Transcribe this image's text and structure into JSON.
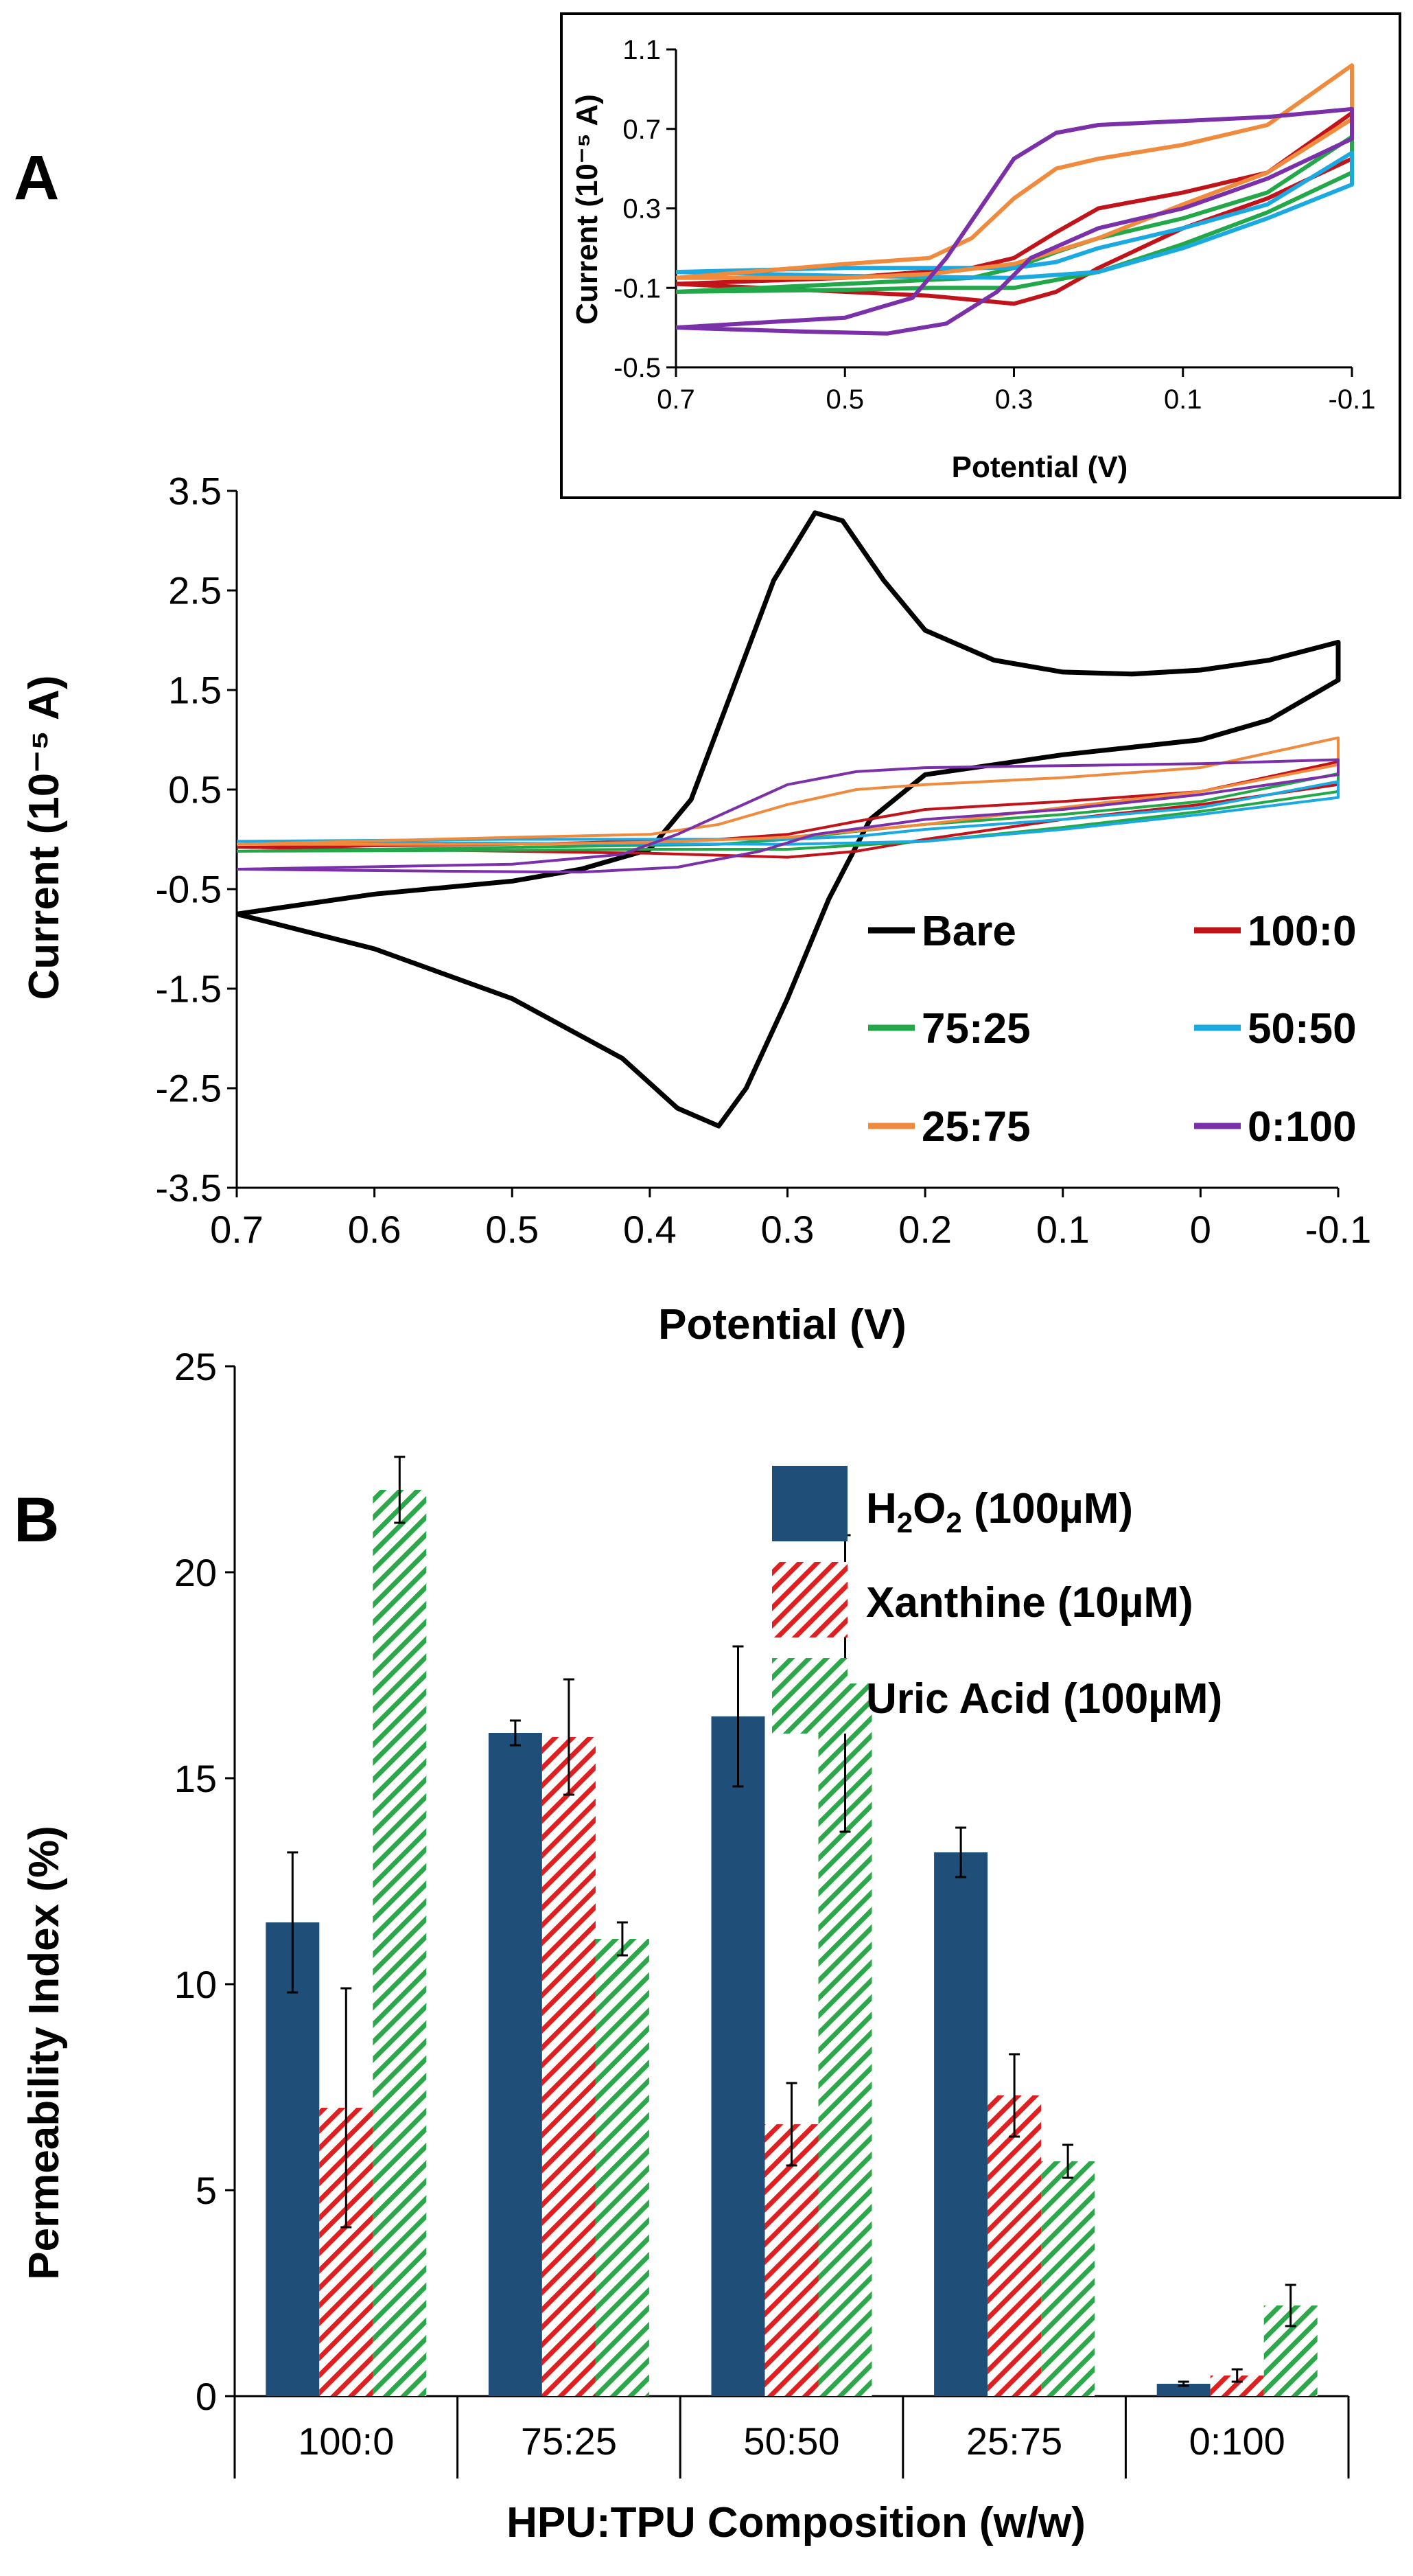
{
  "panel_labels": {
    "a": "A",
    "b": "B"
  },
  "colors": {
    "Bare": "#000000",
    "100:0": "#c0141a",
    "75:25": "#22a848",
    "50:50": "#1aa9e0",
    "25:75": "#f08a3c",
    "0:100": "#7a30a8",
    "h2o2": "#1f4e79",
    "xanthine": "#e02020",
    "uric": "#2ca84a"
  },
  "chart_data": [
    {
      "id": "cv_main",
      "type": "line",
      "title": "",
      "xlabel": "Potential (V)",
      "ylabel": "Current (10⁻⁵ A)",
      "xlim": [
        0.7,
        -0.1
      ],
      "ylim": [
        -3.5,
        3.5
      ],
      "x_ticks": [
        "0.7",
        "0.6",
        "0.5",
        "0.4",
        "0.3",
        "0.2",
        "0.1",
        "0",
        "-0.1"
      ],
      "y_ticks": [
        "3.5",
        "2.5",
        "1.5",
        "0.5",
        "-0.5",
        "-1.5",
        "-2.5",
        "-3.5"
      ],
      "legend_position": "bottom-right",
      "series": [
        {
          "name": "Bare",
          "forward": [
            [
              0.7,
              -0.75
            ],
            [
              0.6,
              -0.55
            ],
            [
              0.5,
              -0.42
            ],
            [
              0.45,
              -0.3
            ],
            [
              0.4,
              -0.1
            ],
            [
              0.37,
              0.4
            ],
            [
              0.34,
              1.5
            ],
            [
              0.31,
              2.6
            ],
            [
              0.28,
              3.28
            ],
            [
              0.26,
              3.2
            ],
            [
              0.23,
              2.6
            ],
            [
              0.2,
              2.1
            ],
            [
              0.15,
              1.8
            ],
            [
              0.1,
              1.68
            ],
            [
              0.05,
              1.66
            ],
            [
              0.0,
              1.7
            ],
            [
              -0.05,
              1.8
            ],
            [
              -0.1,
              1.98
            ]
          ],
          "reverse": [
            [
              -0.1,
              1.98
            ],
            [
              -0.1,
              1.6
            ],
            [
              -0.05,
              1.2
            ],
            [
              0.0,
              1.0
            ],
            [
              0.1,
              0.85
            ],
            [
              0.2,
              0.65
            ],
            [
              0.24,
              0.2
            ],
            [
              0.27,
              -0.6
            ],
            [
              0.3,
              -1.6
            ],
            [
              0.33,
              -2.5
            ],
            [
              0.35,
              -2.88
            ],
            [
              0.38,
              -2.7
            ],
            [
              0.42,
              -2.2
            ],
            [
              0.5,
              -1.6
            ],
            [
              0.6,
              -1.1
            ],
            [
              0.7,
              -0.75
            ]
          ]
        },
        {
          "name": "100:0",
          "forward": [
            [
              0.7,
              -0.08
            ],
            [
              0.5,
              -0.05
            ],
            [
              0.35,
              0.0
            ],
            [
              0.3,
              0.05
            ],
            [
              0.25,
              0.18
            ],
            [
              0.2,
              0.3
            ],
            [
              0.1,
              0.38
            ],
            [
              0.0,
              0.48
            ],
            [
              -0.1,
              0.78
            ]
          ],
          "reverse": [
            [
              -0.1,
              0.78
            ],
            [
              -0.1,
              0.55
            ],
            [
              0.0,
              0.35
            ],
            [
              0.1,
              0.2
            ],
            [
              0.2,
              0.0
            ],
            [
              0.25,
              -0.12
            ],
            [
              0.3,
              -0.18
            ],
            [
              0.4,
              -0.14
            ],
            [
              0.5,
              -0.12
            ],
            [
              0.7,
              -0.08
            ]
          ]
        },
        {
          "name": "75:25",
          "forward": [
            [
              0.7,
              -0.12
            ],
            [
              0.5,
              -0.08
            ],
            [
              0.35,
              -0.05
            ],
            [
              0.3,
              0.0
            ],
            [
              0.25,
              0.08
            ],
            [
              0.2,
              0.15
            ],
            [
              0.1,
              0.25
            ],
            [
              0.0,
              0.38
            ],
            [
              -0.1,
              0.66
            ]
          ],
          "reverse": [
            [
              -0.1,
              0.66
            ],
            [
              -0.1,
              0.48
            ],
            [
              0.0,
              0.28
            ],
            [
              0.1,
              0.12
            ],
            [
              0.2,
              -0.02
            ],
            [
              0.3,
              -0.1
            ],
            [
              0.4,
              -0.1
            ],
            [
              0.5,
              -0.11
            ],
            [
              0.7,
              -0.12
            ]
          ]
        },
        {
          "name": "50:50",
          "forward": [
            [
              0.7,
              -0.02
            ],
            [
              0.5,
              0.0
            ],
            [
              0.35,
              0.0
            ],
            [
              0.3,
              0.0
            ],
            [
              0.25,
              0.03
            ],
            [
              0.2,
              0.1
            ],
            [
              0.1,
              0.2
            ],
            [
              0.0,
              0.32
            ],
            [
              -0.1,
              0.58
            ]
          ],
          "reverse": [
            [
              -0.1,
              0.58
            ],
            [
              -0.1,
              0.42
            ],
            [
              0.0,
              0.25
            ],
            [
              0.1,
              0.1
            ],
            [
              0.2,
              -0.02
            ],
            [
              0.3,
              -0.05
            ],
            [
              0.5,
              -0.04
            ],
            [
              0.7,
              -0.02
            ]
          ]
        },
        {
          "name": "25:75",
          "forward": [
            [
              0.7,
              -0.05
            ],
            [
              0.5,
              0.02
            ],
            [
              0.4,
              0.05
            ],
            [
              0.35,
              0.15
            ],
            [
              0.3,
              0.35
            ],
            [
              0.25,
              0.5
            ],
            [
              0.2,
              0.55
            ],
            [
              0.1,
              0.62
            ],
            [
              0.0,
              0.72
            ],
            [
              -0.1,
              1.02
            ]
          ],
          "reverse": [
            [
              -0.1,
              1.02
            ],
            [
              -0.1,
              0.75
            ],
            [
              0.0,
              0.48
            ],
            [
              0.1,
              0.32
            ],
            [
              0.2,
              0.15
            ],
            [
              0.3,
              0.02
            ],
            [
              0.4,
              -0.03
            ],
            [
              0.5,
              -0.05
            ],
            [
              0.7,
              -0.05
            ]
          ]
        },
        {
          "name": "0:100",
          "forward": [
            [
              0.7,
              -0.3
            ],
            [
              0.5,
              -0.25
            ],
            [
              0.42,
              -0.15
            ],
            [
              0.38,
              0.05
            ],
            [
              0.34,
              0.3
            ],
            [
              0.3,
              0.55
            ],
            [
              0.25,
              0.68
            ],
            [
              0.2,
              0.72
            ],
            [
              0.1,
              0.74
            ],
            [
              0.0,
              0.76
            ],
            [
              -0.1,
              0.8
            ]
          ],
          "reverse": [
            [
              -0.1,
              0.8
            ],
            [
              -0.1,
              0.65
            ],
            [
              0.0,
              0.45
            ],
            [
              0.1,
              0.3
            ],
            [
              0.2,
              0.2
            ],
            [
              0.28,
              0.05
            ],
            [
              0.32,
              -0.12
            ],
            [
              0.38,
              -0.28
            ],
            [
              0.45,
              -0.33
            ],
            [
              0.55,
              -0.32
            ],
            [
              0.7,
              -0.3
            ]
          ]
        }
      ]
    },
    {
      "id": "cv_inset",
      "type": "line",
      "title": "",
      "xlabel": "Potential (V)",
      "ylabel": "Current (10⁻⁵ A)",
      "xlim": [
        0.7,
        -0.1
      ],
      "ylim": [
        -0.5,
        1.1
      ],
      "x_ticks": [
        "0.7",
        "0.5",
        "0.3",
        "0.1",
        "-0.1"
      ],
      "y_ticks": [
        "1.1",
        "0.7",
        "0.3",
        "-0.1",
        "-0.5"
      ],
      "series_ref": "cv_main (all series except Bare)"
    },
    {
      "id": "permeability",
      "type": "bar",
      "title": "",
      "xlabel": "HPU:TPU Composition (w/w)",
      "ylabel": "Permeability Index (%)",
      "ylim": [
        0,
        25
      ],
      "y_ticks": [
        "0",
        "5",
        "10",
        "15",
        "20",
        "25"
      ],
      "categories": [
        "100:0",
        "75:25",
        "50:50",
        "25:75",
        "0:100"
      ],
      "legend_position": "top-right",
      "series": [
        {
          "name": "H2O2 (100µM)",
          "pattern": "solid",
          "values": [
            11.5,
            16.1,
            16.5,
            13.2,
            0.3
          ],
          "errors": [
            1.7,
            0.3,
            1.7,
            0.6,
            0.05
          ]
        },
        {
          "name": "Xanthine (10µM)",
          "pattern": "hatch",
          "values": [
            7.0,
            16.0,
            6.6,
            7.3,
            0.5
          ],
          "errors": [
            2.9,
            1.4,
            1.0,
            1.0,
            0.15
          ]
        },
        {
          "name": "Uric Acid (100µM)",
          "pattern": "hatch",
          "values": [
            22.0,
            11.1,
            17.3,
            5.7,
            2.2
          ],
          "errors": [
            0.8,
            0.4,
            3.6,
            0.4,
            0.5
          ]
        }
      ]
    }
  ],
  "legend_a": [
    "Bare",
    "100:0",
    "75:25",
    "50:50",
    "25:75",
    "0:100"
  ],
  "legend_b": {
    "h2o2_main": "H",
    "h2o2_sub1": "2",
    "h2o2_mid": "O",
    "h2o2_sub2": "2",
    "h2o2_rest": " (100µM)",
    "xanthine": "Xanthine (10µM)",
    "uric": "Uric Acid (100µM)"
  }
}
